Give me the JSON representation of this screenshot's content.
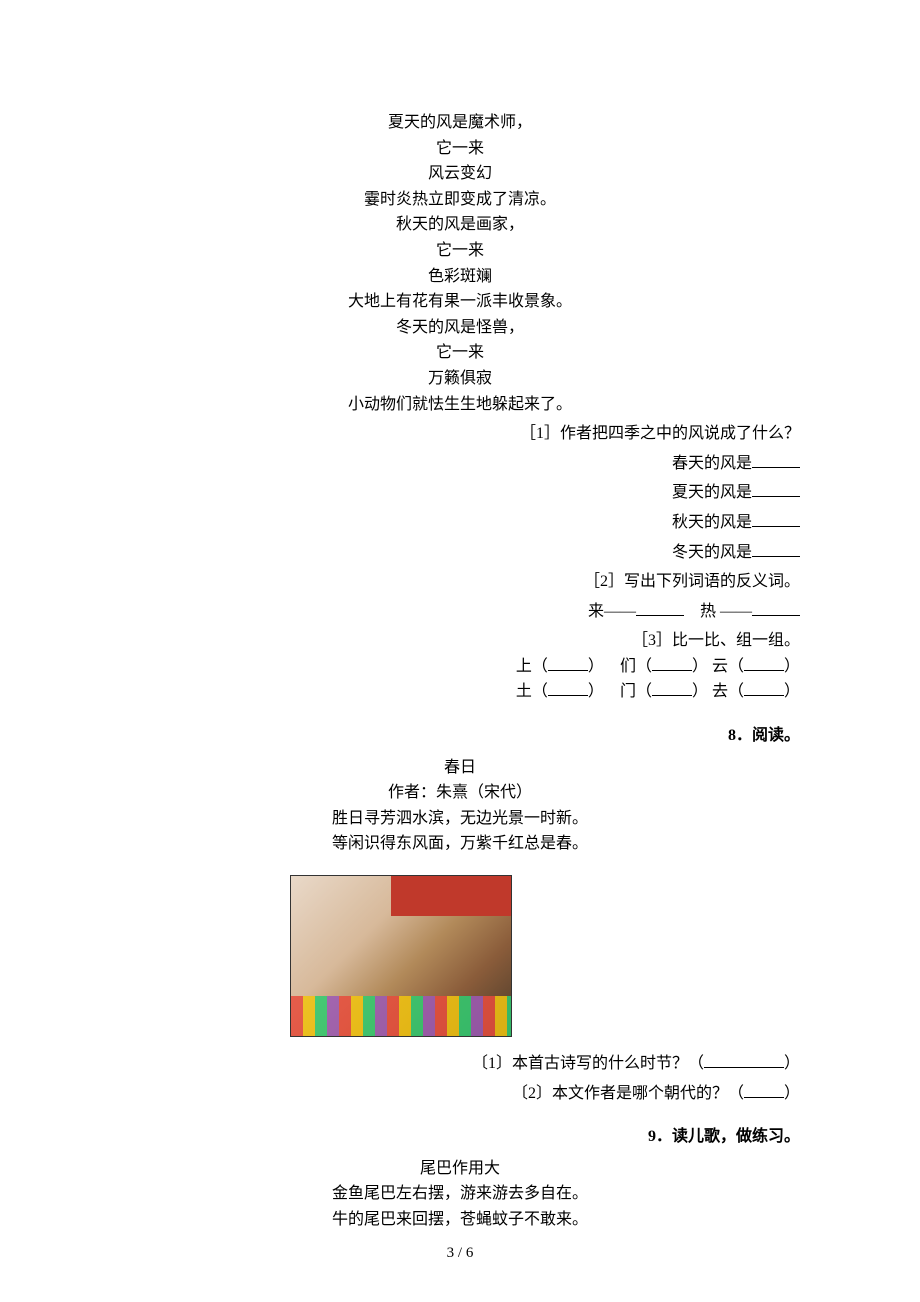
{
  "poem1": {
    "lines": [
      "夏天的风是魔术师，",
      "它一来",
      "风云变幻",
      "霎时炎热立即变成了清凉。",
      "秋天的风是画家，",
      "它一来",
      "色彩斑斓",
      "大地上有花有果一派丰收景象。",
      "冬天的风是怪兽，",
      "它一来",
      "万籁俱寂",
      "小动物们就怯生生地躲起来了。"
    ]
  },
  "q1": {
    "prompt": "［1］作者把四季之中的风说成了什么？",
    "items": [
      "春天的风是",
      "夏天的风是",
      "秋天的风是",
      "冬天的风是"
    ]
  },
  "q2": {
    "prompt": "［2］写出下列词语的反义词。",
    "w1": "来——",
    "w2": "热 ——"
  },
  "q3": {
    "prompt": "［3］比一比、组一组。",
    "row1": {
      "a": "上（",
      "b": "们（",
      "c": "云（"
    },
    "row2": {
      "a": "土（",
      "b": "门（",
      "c": "去（"
    },
    "closeParen": "）"
  },
  "section8": {
    "title": "8．阅读。"
  },
  "poem2": {
    "title": "春日",
    "author": "作者：朱熹（宋代）",
    "line1": "胜日寻芳泗水滨，无边光景一时新。",
    "line2": "等闲识得东风面，万紫千红总是春。"
  },
  "q8a": {
    "prefix": "〔1〕本首古诗写的什么时节？（",
    "suffix": "）"
  },
  "q8b": {
    "prefix": "〔2〕本文作者是哪个朝代的？（",
    "suffix": "）"
  },
  "section9": {
    "title": "9．读儿歌，做练习。"
  },
  "poem3": {
    "title": "尾巴作用大",
    "line1": "金鱼尾巴左右摆，游来游去多自在。",
    "line2": "牛的尾巴来回摆，苍蝇蚊子不敢来。"
  },
  "footer": {
    "text": "3 / 6"
  }
}
